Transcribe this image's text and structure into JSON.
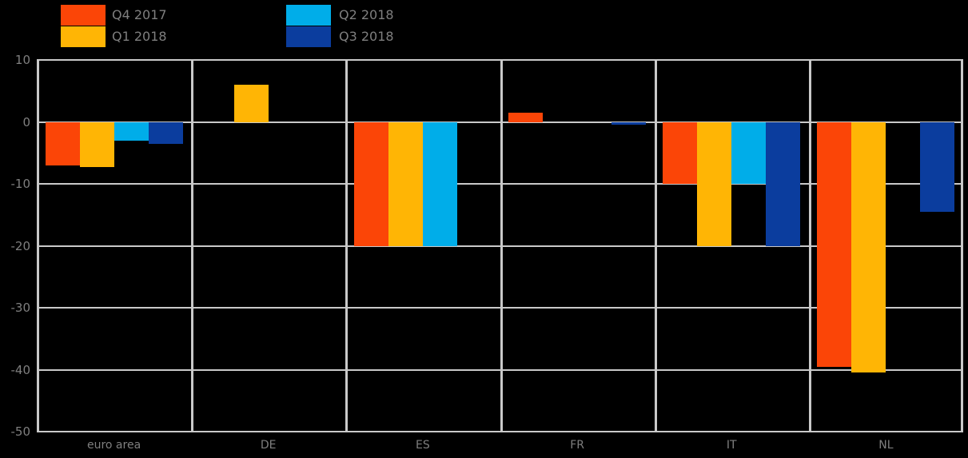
{
  "colors": {
    "background": "#000000",
    "grid": "#c9c9c9",
    "text": "#7f7f7f",
    "q4_2017": "#FB4507",
    "q1_2018": "#FFB505",
    "q2_2018": "#00ADE9",
    "q3_2018": "#0B3D9E"
  },
  "legend": {
    "items": [
      {
        "label": "Q4 2017",
        "color": "#FB4507"
      },
      {
        "label": "Q1 2018",
        "color": "#FFB505"
      },
      {
        "label": "Q2 2018",
        "color": "#00ADE9"
      },
      {
        "label": "Q3 2018",
        "color": "#0B3D9E"
      }
    ]
  },
  "chart_data": {
    "type": "bar",
    "title": "",
    "xlabel": "",
    "ylabel": "",
    "categories": [
      "euro area",
      "DE",
      "ES",
      "FR",
      "IT",
      "NL"
    ],
    "series": [
      {
        "name": "Q4 2017",
        "color": "#FB4507",
        "values": [
          -7,
          null,
          -20,
          1.5,
          -10,
          -39.5
        ]
      },
      {
        "name": "Q1 2018",
        "color": "#FFB505",
        "values": [
          -7.3,
          6,
          -20,
          null,
          -20,
          -40.5
        ]
      },
      {
        "name": "Q2 2018",
        "color": "#00ADE9",
        "values": [
          -3,
          null,
          -20,
          null,
          -10,
          null
        ]
      },
      {
        "name": "Q3 2018",
        "color": "#0B3D9E",
        "values": [
          -3.5,
          null,
          null,
          -0.5,
          -20,
          -14.5
        ]
      }
    ],
    "ylim": [
      -50,
      10
    ],
    "yticks": [
      10,
      0,
      -10,
      -20,
      -30,
      -40,
      -50
    ],
    "grid": true,
    "panel_separators": true,
    "legend_position": "top-left"
  }
}
